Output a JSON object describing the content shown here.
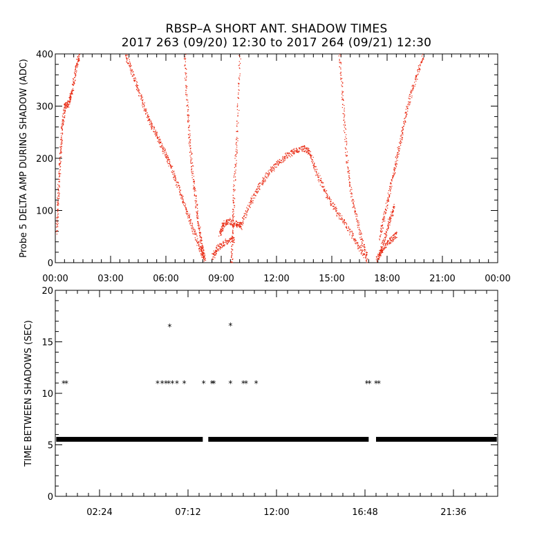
{
  "title": "RBSP–A SHORT ANT. SHADOW TIMES",
  "subtitle": "2017 263 (09/20) 12:30 to 2017 264 (09/21) 12:30",
  "chart_data": [
    {
      "type": "scatter",
      "ylabel": "Probe 5 DELTA AMP DURING SHADOW (ADC)",
      "xlabel": "",
      "xlim": [
        0,
        24
      ],
      "ylim": [
        0,
        400
      ],
      "yticks": [
        0,
        100,
        200,
        300,
        400
      ],
      "xtick_labels": [
        "00:00",
        "03:00",
        "06:00",
        "09:00",
        "12:00",
        "15:00",
        "18:00",
        "21:00",
        "00:00"
      ],
      "xtick_values": [
        0,
        3,
        6,
        9,
        12,
        15,
        18,
        21,
        24
      ],
      "color": "#e8240c",
      "series": [
        {
          "points": [
            [
              0.05,
              60
            ],
            [
              0.15,
              130
            ],
            [
              0.25,
              200
            ],
            [
              0.35,
              260
            ],
            [
              0.5,
              300
            ],
            [
              0.7,
              305
            ],
            [
              0.9,
              330
            ],
            [
              1.1,
              375
            ],
            [
              1.3,
              400
            ]
          ]
        },
        {
          "points": [
            [
              3.8,
              400
            ],
            [
              4.2,
              360
            ],
            [
              4.6,
              320
            ],
            [
              5.0,
              280
            ],
            [
              5.4,
              250
            ],
            [
              5.8,
              220
            ],
            [
              6.2,
              190
            ],
            [
              6.6,
              150
            ],
            [
              7.0,
              110
            ],
            [
              7.4,
              70
            ],
            [
              7.8,
              30
            ],
            [
              8.1,
              5
            ]
          ]
        },
        {
          "points": [
            [
              7.0,
              400
            ],
            [
              7.15,
              300
            ],
            [
              7.3,
              220
            ],
            [
              7.5,
              150
            ],
            [
              7.7,
              90
            ],
            [
              7.9,
              40
            ],
            [
              8.05,
              10
            ]
          ]
        },
        {
          "points": [
            [
              8.5,
              10
            ],
            [
              8.8,
              30
            ],
            [
              9.2,
              40
            ],
            [
              9.7,
              45
            ]
          ]
        },
        {
          "points": [
            [
              8.9,
              55
            ],
            [
              9.1,
              75
            ],
            [
              9.4,
              80
            ],
            [
              9.8,
              75
            ],
            [
              10.1,
              70
            ]
          ]
        },
        {
          "points": [
            [
              9.55,
              0
            ],
            [
              9.6,
              60
            ],
            [
              9.7,
              150
            ],
            [
              9.85,
              250
            ],
            [
              10.0,
              400
            ]
          ]
        },
        {
          "points": [
            [
              10.0,
              70
            ],
            [
              10.5,
              110
            ],
            [
              11.0,
              145
            ],
            [
              11.5,
              170
            ],
            [
              12.0,
              190
            ],
            [
              12.5,
              205
            ],
            [
              13.0,
              215
            ],
            [
              13.5,
              220
            ],
            [
              13.8,
              210
            ],
            [
              14.2,
              170
            ],
            [
              14.7,
              130
            ],
            [
              15.2,
              100
            ],
            [
              15.8,
              70
            ],
            [
              16.4,
              35
            ],
            [
              16.9,
              5
            ]
          ]
        },
        {
          "points": [
            [
              15.4,
              400
            ],
            [
              15.6,
              300
            ],
            [
              15.8,
              200
            ],
            [
              16.1,
              120
            ],
            [
              16.5,
              60
            ],
            [
              16.9,
              10
            ]
          ]
        },
        {
          "points": [
            [
              17.4,
              5
            ],
            [
              17.8,
              30
            ],
            [
              18.2,
              45
            ],
            [
              18.5,
              55
            ]
          ]
        },
        {
          "points": [
            [
              17.5,
              10
            ],
            [
              17.8,
              40
            ],
            [
              18.1,
              80
            ],
            [
              18.4,
              110
            ]
          ]
        },
        {
          "points": [
            [
              17.6,
              50
            ],
            [
              17.9,
              100
            ],
            [
              18.2,
              150
            ],
            [
              18.5,
              200
            ],
            [
              18.8,
              250
            ],
            [
              19.1,
              300
            ],
            [
              19.5,
              350
            ],
            [
              20.0,
              400
            ]
          ]
        }
      ]
    },
    {
      "type": "scatter",
      "ylabel": "TIME BETWEEN SHADOWS (SEC)",
      "xlabel": "",
      "xlim": [
        0,
        24
      ],
      "ylim": [
        0,
        20
      ],
      "yticks": [
        0,
        5,
        10,
        15,
        20
      ],
      "xtick_labels": [
        "02:24",
        "07:12",
        "12:00",
        "16:48",
        "21:36"
      ],
      "xtick_values": [
        2.4,
        7.2,
        12.0,
        16.8,
        21.6
      ],
      "baseline_value": 5.5,
      "baseline_segments": [
        [
          0.05,
          8.0
        ],
        [
          8.3,
          17.0
        ],
        [
          17.4,
          23.95
        ]
      ],
      "color": "#000000",
      "points": [
        [
          0.45,
          11.0
        ],
        [
          0.6,
          11.0
        ],
        [
          5.55,
          11.0
        ],
        [
          5.8,
          11.0
        ],
        [
          6.0,
          11.0
        ],
        [
          6.15,
          11.0
        ],
        [
          6.35,
          11.0
        ],
        [
          6.6,
          11.0
        ],
        [
          7.0,
          11.0
        ],
        [
          6.2,
          16.5
        ],
        [
          9.5,
          16.6
        ],
        [
          8.05,
          11.0
        ],
        [
          8.5,
          11.0
        ],
        [
          8.6,
          11.0
        ],
        [
          9.5,
          11.0
        ],
        [
          10.2,
          11.0
        ],
        [
          10.35,
          11.0
        ],
        [
          10.9,
          11.0
        ],
        [
          16.9,
          11.0
        ],
        [
          17.05,
          11.0
        ],
        [
          17.4,
          11.0
        ],
        [
          17.55,
          11.0
        ]
      ]
    }
  ]
}
